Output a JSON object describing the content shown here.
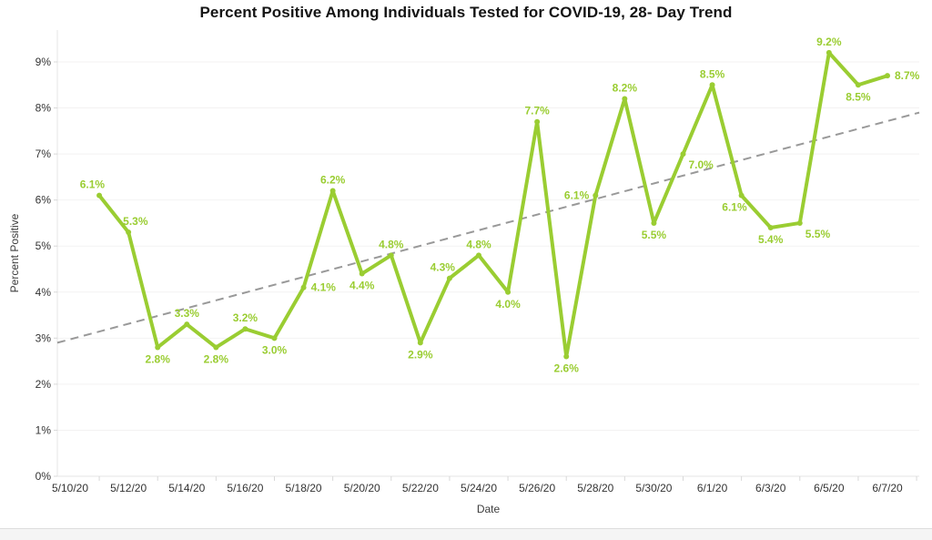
{
  "chart_data": {
    "type": "line",
    "title": "Percent Positive Among Individuals Tested for COVID-19, 28- Day Trend",
    "xlabel": "Date",
    "ylabel": "Percent Positive",
    "legend": "none",
    "grid": "horizontal",
    "ylim": [
      0,
      9.7
    ],
    "y_tick_labels": [
      "0%",
      "1%",
      "2%",
      "3%",
      "4%",
      "5%",
      "6%",
      "7%",
      "8%",
      "9%"
    ],
    "x_tick_labels": [
      "5/10/20",
      "5/12/20",
      "5/14/20",
      "5/16/20",
      "5/18/20",
      "5/20/20",
      "5/22/20",
      "5/24/20",
      "5/26/20",
      "5/28/20",
      "5/30/20",
      "6/1/20",
      "6/3/20",
      "6/5/20",
      "6/7/20"
    ],
    "series": [
      {
        "name": "Percent Positive",
        "dates": [
          "5/11/20",
          "5/12/20",
          "5/13/20",
          "5/14/20",
          "5/15/20",
          "5/16/20",
          "5/17/20",
          "5/18/20",
          "5/19/20",
          "5/20/20",
          "5/21/20",
          "5/22/20",
          "5/23/20",
          "5/24/20",
          "5/25/20",
          "5/26/20",
          "5/27/20",
          "5/28/20",
          "5/29/20",
          "5/30/20",
          "5/31/20",
          "6/1/20",
          "6/2/20",
          "6/3/20",
          "6/4/20",
          "6/5/20",
          "6/6/20",
          "6/7/20"
        ],
        "values": [
          6.1,
          5.3,
          2.8,
          3.3,
          2.8,
          3.2,
          3.0,
          4.1,
          6.2,
          4.4,
          4.8,
          2.9,
          4.3,
          4.8,
          4.0,
          7.7,
          2.6,
          6.1,
          8.2,
          5.5,
          7.0,
          8.5,
          6.1,
          5.4,
          5.5,
          9.2,
          8.5,
          8.7
        ],
        "labels": [
          "6.1%",
          "5.3%",
          "2.8%",
          "3.3%",
          "2.8%",
          "3.2%",
          "3.0%",
          "4.1%",
          "6.2%",
          "4.4%",
          "4.8%",
          "2.9%",
          "4.3%",
          "4.8%",
          "4.0%",
          "7.7%",
          "2.6%",
          "6.1%",
          "8.2%",
          "5.5%",
          "7.0%",
          "8.5%",
          "6.1%",
          "5.4%",
          "5.5%",
          "9.2%",
          "8.5%",
          "8.7%"
        ],
        "label_pos": [
          "above-left",
          "above-right",
          "below",
          "above",
          "below",
          "above",
          "below",
          "right",
          "above",
          "below",
          "above",
          "below",
          "above-left",
          "above",
          "below",
          "above",
          "below",
          "left",
          "above",
          "below",
          "below-right",
          "above",
          "below-left",
          "below",
          "below-right",
          "above",
          "below",
          "right"
        ]
      }
    ],
    "trendline": {
      "style": "dashed",
      "start_value": 2.9,
      "end_value": 7.9
    },
    "colors": {
      "line": "#9acd32",
      "point_labels": "#9acd32",
      "trend": "#999999",
      "gridline": "#f3f2f2",
      "axis_line": "#e4e4e4",
      "tick_mark": "#d8d8d8",
      "tick_text": "#333333",
      "title_text": "#141414"
    }
  }
}
